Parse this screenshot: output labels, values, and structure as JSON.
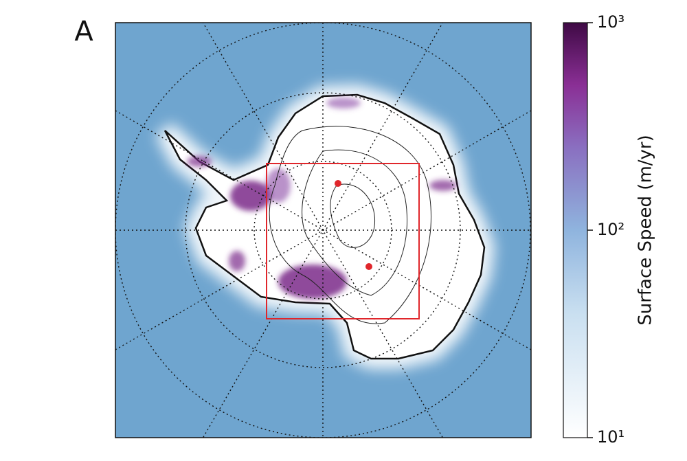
{
  "panel_label": "A",
  "colorbar": {
    "label": "Surface Speed (m/yr)",
    "scale": "log",
    "lim": [
      10,
      1000
    ],
    "ticks": [
      {
        "value": 10,
        "label": "10¹"
      },
      {
        "value": 100,
        "label": "10²"
      },
      {
        "value": 1000,
        "label": "10³"
      }
    ]
  }
}
